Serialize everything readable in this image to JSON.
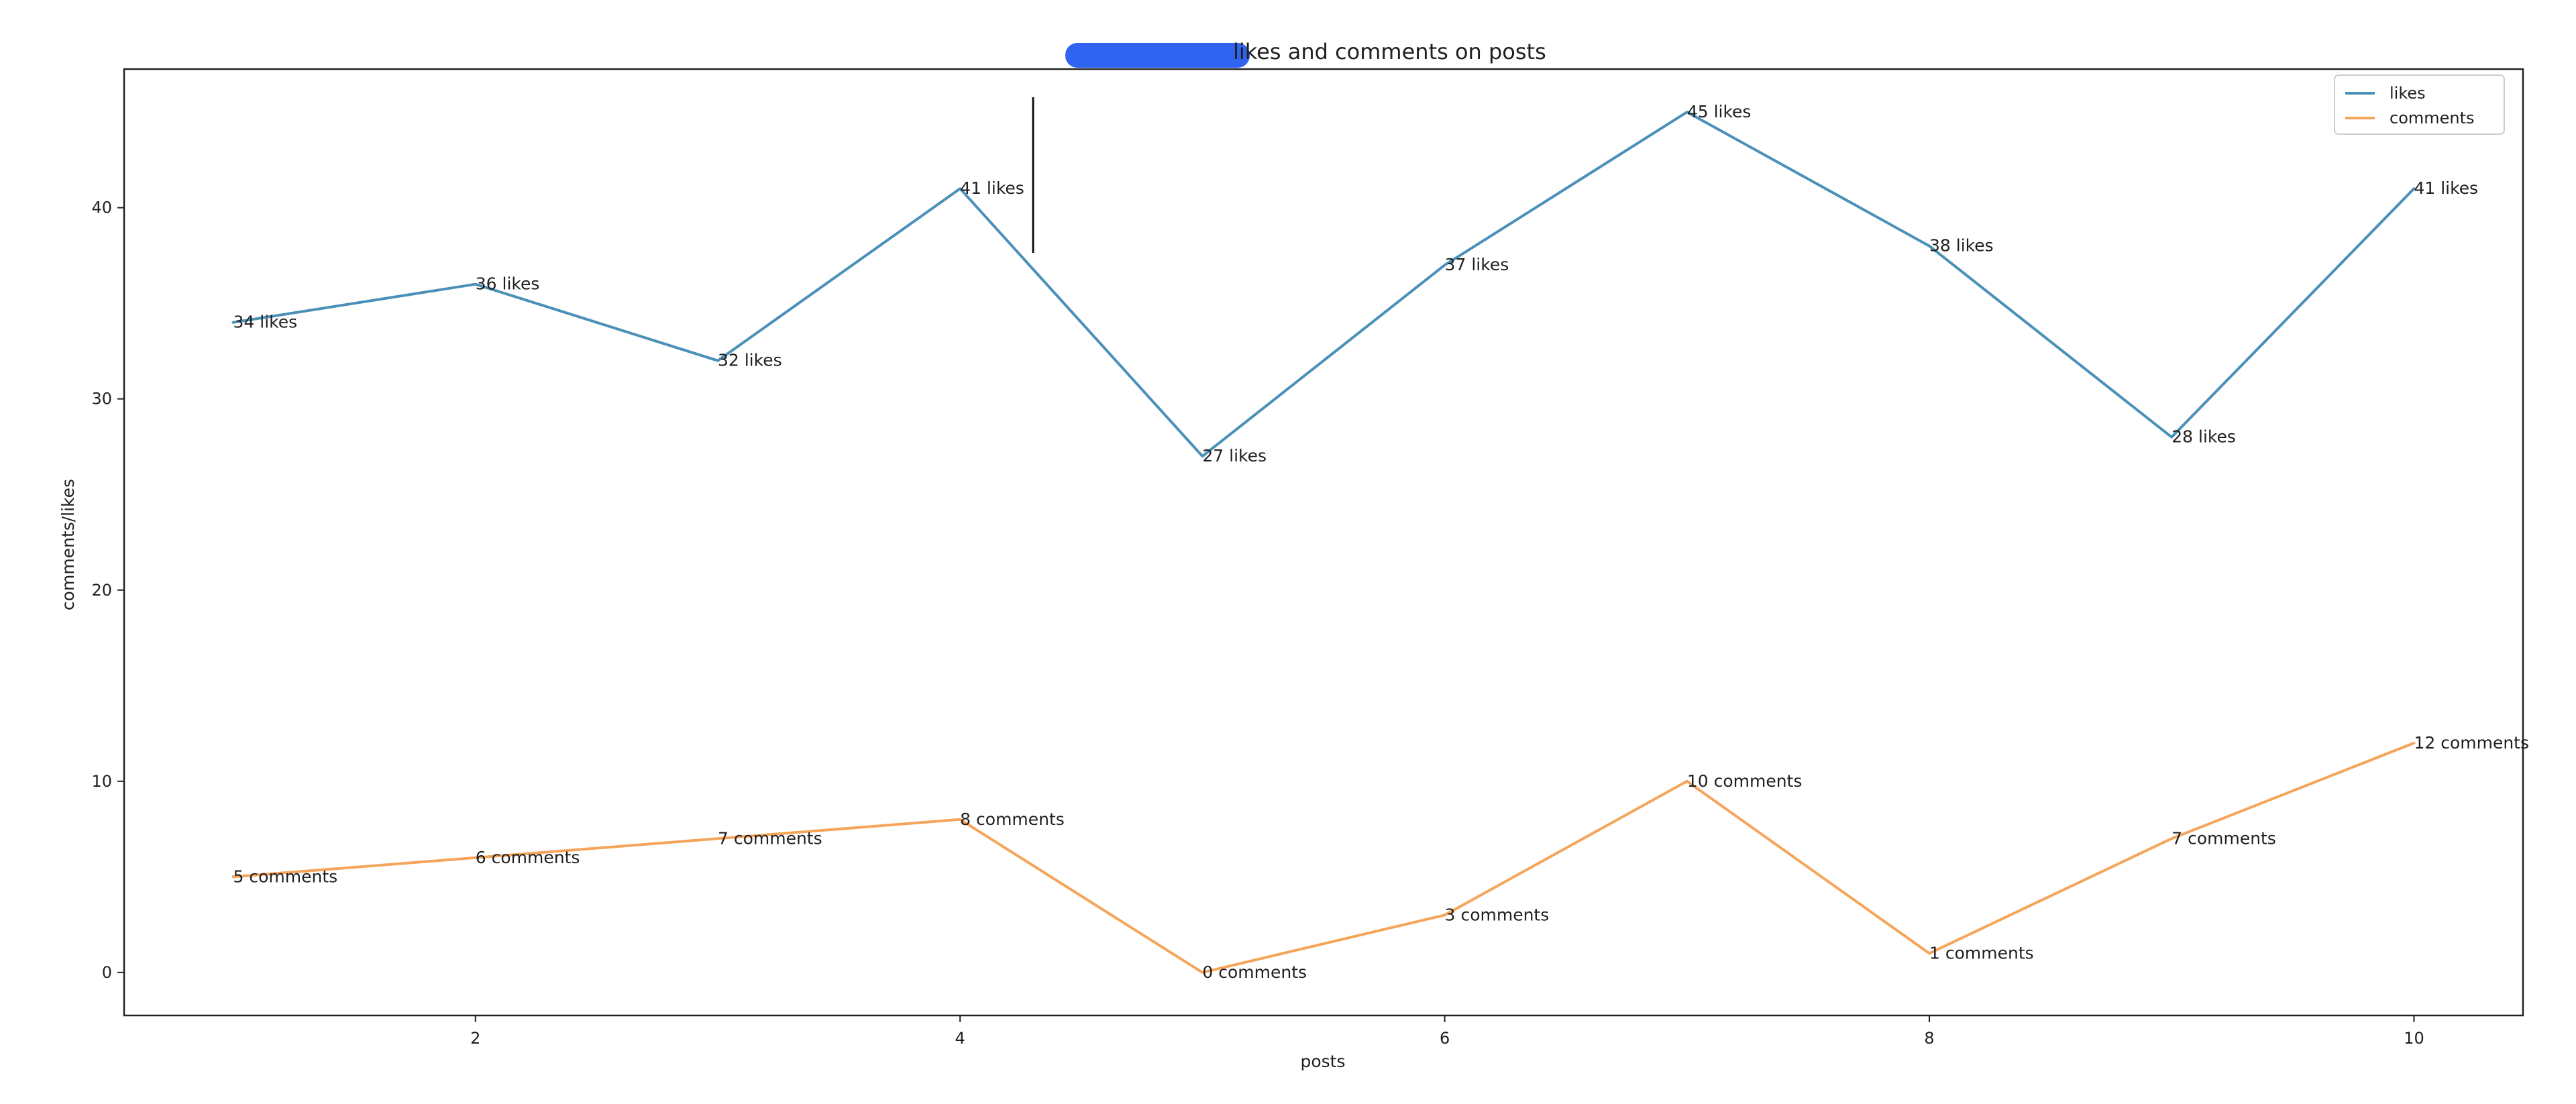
{
  "chart_data": {
    "type": "line",
    "title": "likes and comments on posts",
    "xlabel": "posts",
    "ylabel": "comments/likes",
    "x": [
      1,
      2,
      3,
      4,
      5,
      6,
      7,
      8,
      9,
      10
    ],
    "xlim": [
      0.55,
      10.45
    ],
    "ylim": [
      -2.25,
      47.25
    ],
    "xticks": [
      2,
      4,
      6,
      8,
      10
    ],
    "yticks": [
      0,
      10,
      20,
      30,
      40
    ],
    "grid": false,
    "legend_position": "top-right",
    "series": [
      {
        "name": "likes",
        "color": "#4a90b8",
        "values": [
          34,
          36,
          32,
          41,
          27,
          37,
          45,
          38,
          28,
          41
        ],
        "labels": [
          "34 likes",
          "36 likes",
          "32 likes",
          "41 likes",
          "27 likes",
          "37 likes",
          "45 likes",
          "38 likes",
          "28 likes",
          "41 likes"
        ]
      },
      {
        "name": "comments",
        "color": "#f5a55a",
        "values": [
          5,
          6,
          7,
          8,
          0,
          3,
          10,
          1,
          7,
          12
        ],
        "labels": [
          "5 comments",
          "6 comments",
          "7 comments",
          "8 comments",
          "0 comments",
          "3 comments",
          "10 comments",
          "1 comments",
          "7 comments",
          "12 comments"
        ]
      }
    ]
  }
}
